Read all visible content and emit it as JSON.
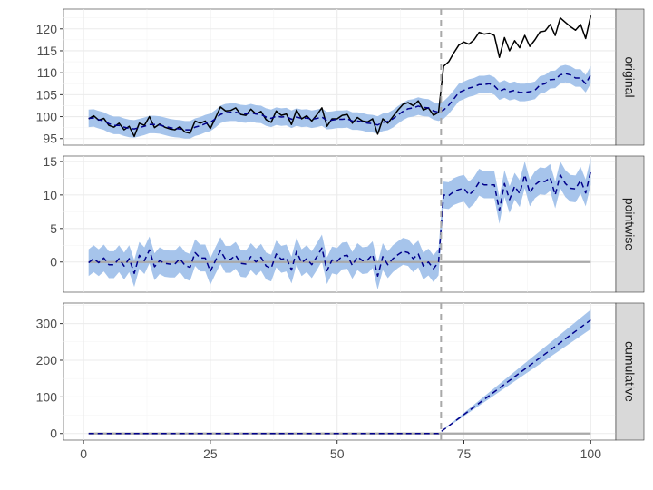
{
  "chart_data": {
    "type": "line",
    "x_ticks": [
      0,
      25,
      50,
      75,
      100
    ],
    "xlim": [
      -3.95,
      104.95
    ],
    "intervention_x": 70.5,
    "colors": {
      "observed": "#000000",
      "prediction": "#00008b",
      "band": "#a6c4eb",
      "zero_line": "#a9a9a9",
      "intervention_line": "#a9a9a9"
    },
    "panels": [
      {
        "name": "original",
        "label": "original",
        "ylim": [
          93.5,
          124.5
        ],
        "y_ticks": [
          95,
          100,
          105,
          110,
          115,
          120
        ],
        "band_halfwidth": 2.0,
        "series": [
          {
            "role": "observed",
            "x": [
              1,
              2,
              3,
              4,
              5,
              6,
              7,
              8,
              9,
              10,
              11,
              12,
              13,
              14,
              15,
              16,
              17,
              18,
              19,
              20,
              21,
              22,
              23,
              24,
              25,
              26,
              27,
              28,
              29,
              30,
              31,
              32,
              33,
              34,
              35,
              36,
              37,
              38,
              39,
              40,
              41,
              42,
              43,
              44,
              45,
              46,
              47,
              48,
              49,
              50,
              51,
              52,
              53,
              54,
              55,
              56,
              57,
              58,
              59,
              60,
              61,
              62,
              63,
              64,
              65,
              66,
              67,
              68,
              69,
              70,
              71,
              72,
              73,
              74,
              75,
              76,
              77,
              78,
              79,
              80,
              81,
              82,
              83,
              84,
              85,
              86,
              87,
              88,
              89,
              90,
              91,
              92,
              93,
              94,
              95,
              96,
              97,
              98,
              99,
              100
            ],
            "y": [
              99.5,
              100.2,
              99.2,
              99.6,
              98.0,
              97.6,
              98.5,
              97.0,
              97.8,
              95.5,
              98.5,
              98.0,
              100.0,
              97.5,
              98.3,
              97.6,
              97.2,
              97.0,
              97.7,
              96.5,
              96.2,
              99.0,
              98.5,
              99.0,
              97.3,
              99.7,
              102.2,
              101.3,
              101.4,
              102.0,
              100.5,
              100.3,
              101.7,
              100.6,
              101.2,
              99.3,
              98.7,
              101.3,
              100.3,
              100.6,
              98.2,
              101.5,
              99.5,
              100.2,
              99.0,
              100.4,
              102.0,
              97.8,
              99.5,
              99.5,
              100.3,
              100.5,
              98.5,
              99.8,
              99.0,
              98.8,
              99.5,
              96.0,
              99.5,
              98.5,
              100.0,
              101.5,
              102.8,
              103.2,
              102.5,
              103.6,
              101.5,
              102.0,
              100.3,
              101.0,
              111.5,
              112.5,
              114.5,
              116.3,
              117.0,
              116.5,
              117.5,
              119.2,
              118.8,
              119.0,
              118.5,
              113.5,
              118.0,
              115.0,
              117.3,
              115.7,
              118.5,
              116.0,
              117.5,
              119.3,
              119.5,
              121.0,
              118.5,
              122.5,
              121.5,
              120.5,
              119.7,
              121.0,
              117.8,
              123.0
            ]
          },
          {
            "role": "prediction",
            "x": [
              1,
              2,
              3,
              4,
              5,
              6,
              7,
              8,
              9,
              10,
              11,
              12,
              13,
              14,
              15,
              16,
              17,
              18,
              19,
              20,
              21,
              22,
              23,
              24,
              25,
              26,
              27,
              28,
              29,
              30,
              31,
              32,
              33,
              34,
              35,
              36,
              37,
              38,
              39,
              40,
              41,
              42,
              43,
              44,
              45,
              46,
              47,
              48,
              49,
              50,
              51,
              52,
              53,
              54,
              55,
              56,
              57,
              58,
              59,
              60,
              61,
              62,
              63,
              64,
              65,
              66,
              67,
              68,
              69,
              70,
              71,
              72,
              73,
              74,
              75,
              76,
              77,
              78,
              79,
              80,
              81,
              82,
              83,
              84,
              85,
              86,
              87,
              88,
              89,
              90,
              91,
              92,
              93,
              94,
              95,
              96,
              97,
              98,
              99,
              100
            ],
            "y": [
              99.6,
              99.7,
              99.3,
              99.0,
              98.4,
              98.0,
              98.0,
              97.6,
              97.3,
              97.2,
              97.5,
              97.8,
              98.2,
              98.2,
              98.1,
              97.8,
              97.5,
              97.3,
              97.2,
              97.0,
              97.0,
              97.6,
              97.9,
              98.4,
              98.7,
              99.5,
              100.5,
              100.9,
              101.0,
              101.0,
              100.7,
              100.6,
              100.9,
              100.6,
              100.5,
              99.9,
              99.6,
              100.1,
              99.9,
              100.0,
              99.4,
              99.9,
              99.6,
              99.7,
              99.4,
              99.6,
              99.9,
              99.1,
              99.2,
              99.4,
              99.4,
              99.5,
              99.0,
              99.0,
              98.8,
              98.5,
              98.4,
              98.1,
              98.7,
              98.9,
              99.5,
              100.4,
              101.2,
              101.8,
              102.0,
              102.4,
              102.1,
              102.0,
              101.3,
              101.0,
              101.5,
              102.6,
              104.0,
              105.5,
              106.0,
              106.5,
              106.8,
              107.3,
              107.3,
              107.5,
              107.0,
              105.8,
              106.3,
              105.7,
              106.0,
              105.5,
              105.5,
              105.7,
              106.0,
              107.2,
              107.5,
              108.4,
              108.5,
              109.5,
              109.8,
              109.5,
              108.8,
              108.8,
              107.5,
              109.5
            ]
          }
        ]
      },
      {
        "name": "pointwise",
        "label": "pointwise",
        "ylim": [
          -4.5,
          15.8
        ],
        "y_ticks": [
          0,
          5,
          10,
          15
        ],
        "band_halfwidth": 2.0,
        "series": [
          {
            "role": "zero",
            "x": [
              1,
              100
            ],
            "y": [
              0,
              0
            ]
          },
          {
            "role": "prediction",
            "x": [
              1,
              2,
              3,
              4,
              5,
              6,
              7,
              8,
              9,
              10,
              11,
              12,
              13,
              14,
              15,
              16,
              17,
              18,
              19,
              20,
              21,
              22,
              23,
              24,
              25,
              26,
              27,
              28,
              29,
              30,
              31,
              32,
              33,
              34,
              35,
              36,
              37,
              38,
              39,
              40,
              41,
              42,
              43,
              44,
              45,
              46,
              47,
              48,
              49,
              50,
              51,
              52,
              53,
              54,
              55,
              56,
              57,
              58,
              59,
              60,
              61,
              62,
              63,
              64,
              65,
              66,
              67,
              68,
              69,
              70,
              71,
              72,
              73,
              74,
              75,
              76,
              77,
              78,
              79,
              80,
              81,
              82,
              83,
              84,
              85,
              86,
              87,
              88,
              89,
              90,
              91,
              92,
              93,
              94,
              95,
              96,
              97,
              98,
              99,
              100
            ],
            "y": [
              -0.1,
              0.5,
              -0.1,
              0.6,
              -0.4,
              -0.4,
              0.5,
              -0.6,
              0.5,
              -1.7,
              1.0,
              0.2,
              1.8,
              -0.7,
              0.2,
              -0.2,
              -0.3,
              -0.3,
              0.5,
              -0.5,
              -0.8,
              1.4,
              0.6,
              0.6,
              -1.4,
              0.2,
              1.7,
              0.4,
              0.4,
              1.0,
              -0.2,
              -0.3,
              0.8,
              0.0,
              0.7,
              -0.6,
              -0.9,
              1.2,
              0.4,
              0.6,
              -1.2,
              1.6,
              -0.1,
              0.5,
              -0.4,
              0.8,
              2.1,
              -1.3,
              0.3,
              0.1,
              0.9,
              1.0,
              -0.5,
              0.8,
              0.2,
              0.3,
              1.1,
              -2.1,
              0.8,
              -0.4,
              0.5,
              1.1,
              1.6,
              1.4,
              0.5,
              1.2,
              -0.6,
              0.0,
              -1.0,
              0.0,
              10.0,
              9.9,
              10.5,
              10.8,
              11.0,
              10.0,
              10.7,
              11.9,
              11.5,
              11.5,
              11.5,
              7.7,
              11.7,
              9.3,
              11.3,
              10.2,
              13.0,
              10.3,
              11.5,
              12.1,
              12.0,
              12.6,
              10.0,
              13.0,
              11.7,
              11.0,
              10.9,
              12.2,
              10.3,
              13.5
            ]
          }
        ]
      },
      {
        "name": "cumulative",
        "label": "cumulative",
        "ylim": [
          -18,
          356
        ],
        "y_ticks": [
          0,
          100,
          200,
          300
        ],
        "series": [
          {
            "role": "zero",
            "x": [
              1,
              100
            ],
            "y": [
              0,
              0
            ]
          },
          {
            "role": "prediction",
            "x": [
              1,
              70,
              100
            ],
            "y": [
              0,
              0,
              310
            ]
          },
          {
            "role": "band",
            "x": [
              70,
              100
            ],
            "lower": [
              0,
              285
            ],
            "upper": [
              0,
              338
            ]
          }
        ]
      }
    ]
  }
}
